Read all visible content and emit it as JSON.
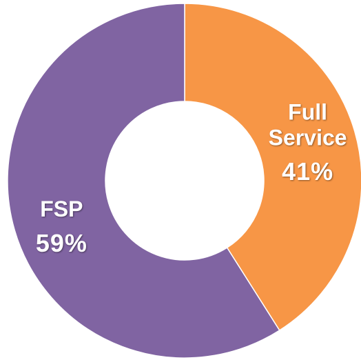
{
  "chart_data": {
    "type": "donut",
    "categories": [
      "Full Service",
      "FSP"
    ],
    "values": [
      41,
      59
    ],
    "value_labels": [
      "41%",
      "59%"
    ],
    "colors": [
      "#F79646",
      "#8064A2"
    ]
  }
}
